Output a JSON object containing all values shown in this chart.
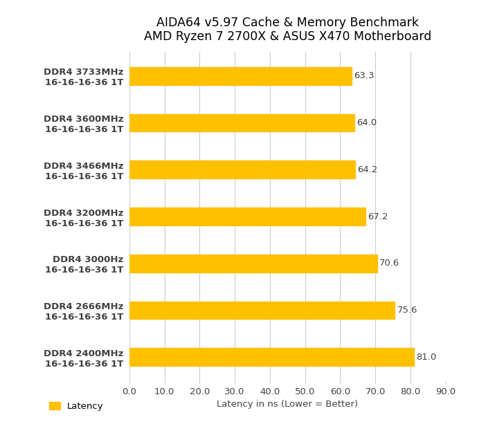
{
  "title_line1": "AIDA64 v5.97 Cache & Memory Benchmark",
  "title_line2": "AMD Ryzen 7 2700X & ASUS X470 Motherboard",
  "categories": [
    "DDR4 3733MHz\n16-16-16-36 1T",
    "DDR4 3600MHz\n16-16-16-36 1T",
    "DDR4 3466MHz\n16-16-16-36 1T",
    "DDR4 3200MHz\n16-16-16-36 1T",
    "DDR4 3000Hz\n16-16-16-36 1T",
    "DDR4 2666MHz\n16-16-16-36 1T",
    "DDR4 2400MHz\n16-16-16-36 1T"
  ],
  "values": [
    63.3,
    64.0,
    64.2,
    67.2,
    70.6,
    75.6,
    81.0
  ],
  "bar_color": "#FFC000",
  "xlim": [
    0,
    90
  ],
  "xticks": [
    0.0,
    10.0,
    20.0,
    30.0,
    40.0,
    50.0,
    60.0,
    70.0,
    80.0,
    90.0
  ],
  "xlabel": "Latency in ns (Lower = Better)",
  "legend_label": "Latency",
  "title_fontsize": 12.5,
  "ylabel_fontsize": 9.5,
  "tick_fontsize": 9.5,
  "value_fontsize": 9.5,
  "xlabel_fontsize": 9.5,
  "legend_fontsize": 9.5,
  "background_color": "#ffffff",
  "grid_color": "#cccccc",
  "bar_height": 0.38,
  "text_color": "#404040"
}
